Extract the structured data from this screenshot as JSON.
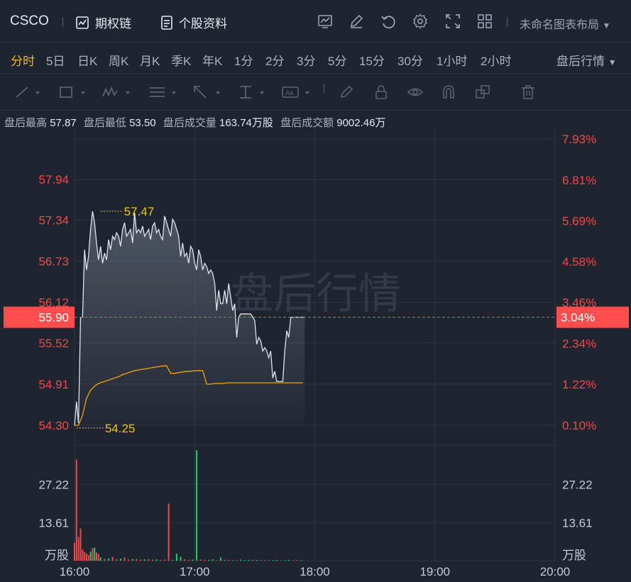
{
  "header": {
    "ticker": "CSCO",
    "options_chain": "期权链",
    "stock_info": "个股资料",
    "layout_name": "未命名图表布局"
  },
  "periods": {
    "items": [
      "分时",
      "5日",
      "日K",
      "周K",
      "月K",
      "季K",
      "年K",
      "1分",
      "2分",
      "3分",
      "5分",
      "15分",
      "30分",
      "1小时",
      "2小时"
    ],
    "active": "分时",
    "session": "盘后行情"
  },
  "stats": {
    "high_label": "盘后最高",
    "high": "57.87",
    "low_label": "盘后最低",
    "low": "53.50",
    "volume_label": "盘后成交量",
    "volume": "163.74万股",
    "turnover_label": "盘后成交额",
    "turnover": "9002.46万"
  },
  "colors": {
    "up": "#f04848",
    "down": "#1fcc6a",
    "price_line": "#dfe3ea",
    "avg_line": "#f0a500",
    "annotation": "#f0c800",
    "current_bg": "#ff4d4d"
  },
  "chart_data": {
    "type": "line",
    "watermark": "盘后行情",
    "x_ticks": [
      "16:00",
      "17:00",
      "18:00",
      "19:00",
      "20:00"
    ],
    "x_range_min": [
      0,
      240
    ],
    "price_ticks": [
      "57.94",
      "57.34",
      "56.73",
      "56.12",
      "55.52",
      "54.91",
      "54.30"
    ],
    "price_tick_values": [
      57.94,
      57.34,
      56.73,
      56.12,
      55.52,
      54.91,
      54.3
    ],
    "pct_ticks": [
      "7.93%",
      "6.81%",
      "5.69%",
      "4.58%",
      "3.46%",
      "2.34%",
      "1.22%",
      "0.10%"
    ],
    "pct_tick_values": [
      7.93,
      6.81,
      5.69,
      4.58,
      3.46,
      2.34,
      1.22,
      0.1
    ],
    "price_range": [
      54.3,
      58.54
    ],
    "pct_range": [
      0.1,
      7.93
    ],
    "current_price": "55.90",
    "current_price_value": 55.9,
    "current_pct": "3.04%",
    "high_annotation": "57.47",
    "high_annotation_value": 57.47,
    "high_annotation_min": 13,
    "low_annotation": "54.25",
    "low_annotation_value": 54.25,
    "low_annotation_min": 1,
    "price_series": {
      "min": [
        0,
        1,
        2,
        3,
        4,
        5,
        6,
        7,
        8,
        9,
        10,
        11,
        12,
        13,
        14,
        15,
        16,
        17,
        18,
        19,
        20,
        21,
        22,
        23,
        24,
        25,
        26,
        27,
        28,
        29,
        30,
        31,
        32,
        33,
        34,
        35,
        36,
        37,
        38,
        39,
        40,
        41,
        42,
        43,
        44,
        45,
        46,
        47,
        48,
        49,
        50,
        51,
        52,
        53,
        54,
        55,
        56,
        57,
        58,
        59,
        60,
        61,
        62,
        63,
        64,
        65,
        66,
        67,
        68,
        69,
        70,
        71,
        72,
        73,
        74,
        75,
        76,
        77,
        78,
        79,
        80,
        81,
        82,
        83,
        84,
        85,
        86,
        87,
        88,
        89,
        90,
        91,
        92,
        93,
        94,
        95,
        96,
        97,
        98,
        99,
        100,
        101,
        102,
        103,
        104,
        105,
        106,
        107,
        108,
        109,
        110,
        111,
        112,
        113,
        114,
        115
      ],
      "values": [
        54.3,
        54.65,
        54.33,
        55.9,
        55.9,
        56.9,
        56.6,
        56.8,
        57.2,
        57.47,
        57.3,
        57.0,
        56.75,
        56.95,
        56.7,
        56.85,
        56.75,
        57.05,
        56.9,
        57.1,
        57.05,
        57.15,
        57.1,
        56.95,
        57.2,
        57.3,
        57.1,
        57.15,
        57.2,
        57.0,
        57.45,
        57.15,
        57.2,
        57.15,
        57.25,
        57.1,
        57.15,
        57.2,
        57.05,
        57.25,
        57.3,
        57.15,
        57.2,
        57.1,
        57.05,
        57.4,
        57.3,
        57.2,
        57.1,
        57.35,
        57.3,
        57.2,
        57.1,
        56.8,
        57.0,
        56.8,
        56.85,
        56.7,
        56.95,
        56.9,
        56.7,
        56.6,
        56.9,
        56.8,
        56.6,
        56.7,
        56.65,
        56.55,
        56.6,
        56.55,
        56.4,
        56.0,
        56.3,
        56.1,
        56.1,
        56.3,
        56.1,
        56.4,
        56.2,
        56.0,
        56.1,
        55.6,
        55.9,
        55.95,
        55.95,
        55.95,
        55.95,
        55.95,
        55.95,
        55.9,
        55.85,
        55.5,
        55.6,
        55.55,
        55.4,
        55.45,
        55.4,
        55.3,
        55.4,
        55.0,
        55.1,
        54.95,
        54.95,
        54.95,
        54.95,
        55.4,
        55.7,
        55.6,
        55.9,
        55.9,
        55.9,
        55.9,
        55.9,
        55.9,
        55.9,
        55.9
      ]
    },
    "avg_series": {
      "min": [
        0,
        2,
        4,
        6,
        8,
        10,
        12,
        14,
        16,
        18,
        20,
        22,
        24,
        26,
        28,
        30,
        32,
        34,
        36,
        38,
        40,
        42,
        44,
        46,
        48,
        50,
        52,
        54,
        56,
        58,
        60,
        62,
        64,
        66,
        68,
        70,
        72,
        74,
        76,
        78,
        80,
        82,
        84,
        86,
        88,
        90,
        92,
        94,
        96,
        98,
        100,
        102,
        104,
        106,
        108,
        110,
        112,
        114
      ],
      "values": [
        54.3,
        54.3,
        54.45,
        54.7,
        54.82,
        54.88,
        54.92,
        54.94,
        54.96,
        54.98,
        55.0,
        55.02,
        55.05,
        55.07,
        55.09,
        55.11,
        55.12,
        55.13,
        55.14,
        55.15,
        55.16,
        55.17,
        55.18,
        55.18,
        55.07,
        55.07,
        55.08,
        55.09,
        55.1,
        55.1,
        55.11,
        55.11,
        55.11,
        54.91,
        54.91,
        54.92,
        54.92,
        54.92,
        54.93,
        54.93,
        54.93,
        54.93,
        54.93,
        54.93,
        54.93,
        54.93,
        54.93,
        54.93,
        54.93,
        54.93,
        54.93,
        54.93,
        54.93,
        54.93,
        54.93,
        54.93,
        54.93,
        54.93
      ]
    },
    "volume_ticks": [
      "27.22",
      "13.61"
    ],
    "volume_tick_values": [
      27.22,
      13.61
    ],
    "volume_unit": "万股",
    "volume_range": [
      0,
      40.8
    ],
    "volume_series": {
      "min": [
        0,
        1,
        2,
        3,
        4,
        5,
        6,
        7,
        8,
        9,
        10,
        11,
        12,
        13,
        15,
        17,
        19,
        21,
        23,
        25,
        27,
        29,
        31,
        33,
        35,
        37,
        39,
        41,
        43,
        45,
        47,
        49,
        51,
        53,
        55,
        57,
        59,
        61,
        63,
        65,
        67,
        69,
        71,
        73,
        75,
        77,
        79,
        81,
        83,
        85,
        87,
        89,
        91,
        93,
        95,
        97,
        99,
        101,
        103,
        105,
        107,
        109,
        111,
        113
      ],
      "values": [
        6.5,
        36.2,
        8.5,
        11.5,
        4.0,
        3.2,
        2.6,
        2.0,
        3.2,
        4.5,
        4.6,
        3.0,
        2.4,
        1.2,
        0.6,
        0.8,
        1.4,
        0.5,
        0.7,
        1.2,
        0.5,
        0.6,
        0.6,
        0.4,
        0.5,
        0.6,
        0.4,
        0.5,
        0.3,
        0.4,
        20.4,
        0.3,
        2.5,
        1.4,
        0.5,
        0.3,
        0.4,
        39.5,
        0.4,
        0.3,
        0.3,
        0.5,
        0.2,
        1.2,
        0.3,
        0.3,
        0.2,
        0.2,
        0.4,
        0.2,
        0.3,
        0.3,
        0.3,
        0.2,
        0.2,
        0.2,
        0.2,
        0.3,
        0.2,
        0.2,
        0.3,
        0.2,
        0.2,
        0.2
      ],
      "direction": [
        "up",
        "up",
        "up",
        "up",
        "up",
        "up",
        "up",
        "up",
        "down",
        "up",
        "down",
        "up",
        "up",
        "down",
        "up",
        "down",
        "up",
        "up",
        "down",
        "up",
        "up",
        "down",
        "up",
        "up",
        "down",
        "up",
        "up",
        "down",
        "up",
        "up",
        "up",
        "down",
        "down",
        "down",
        "up",
        "up",
        "down",
        "down",
        "up",
        "up",
        "down",
        "down",
        "up",
        "down",
        "down",
        "up",
        "down",
        "up",
        "down",
        "down",
        "down",
        "up",
        "down",
        "up",
        "down",
        "up",
        "down",
        "down",
        "up",
        "down",
        "down",
        "up",
        "up",
        "down"
      ]
    }
  }
}
